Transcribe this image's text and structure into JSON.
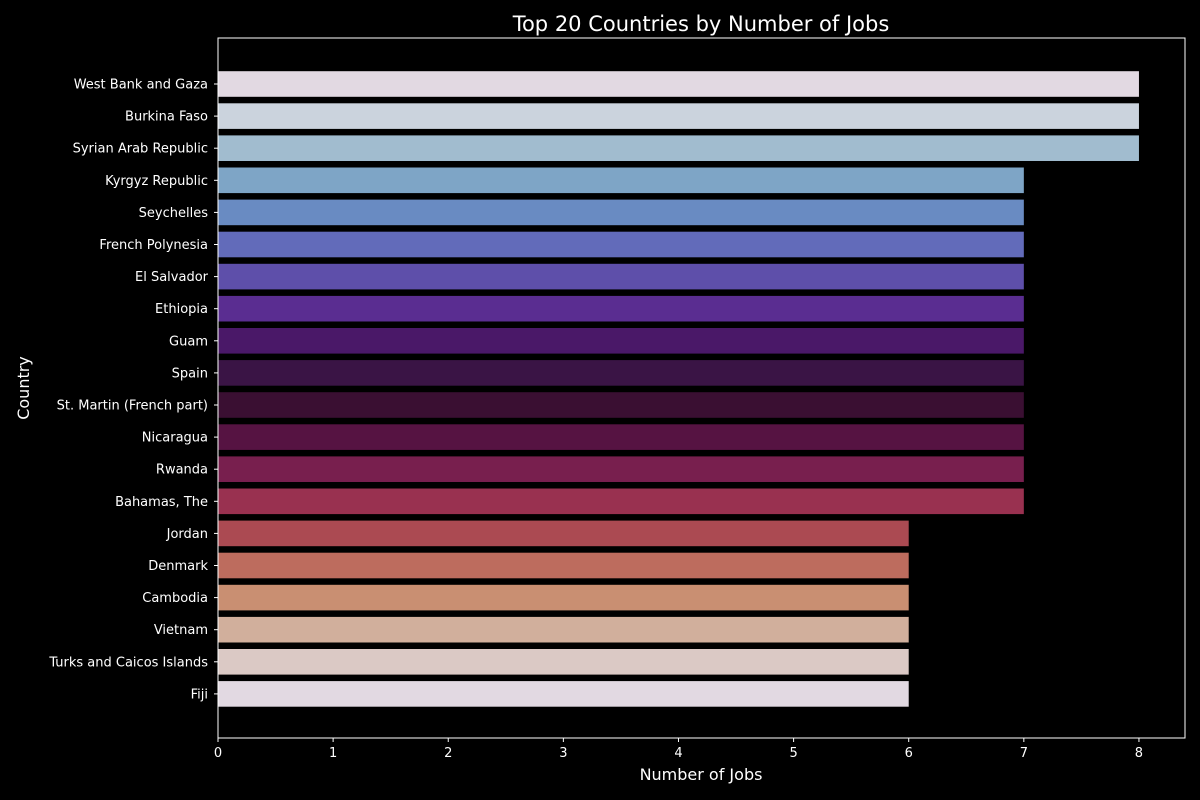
{
  "chart_data": {
    "type": "bar",
    "orientation": "horizontal",
    "title": "Top 20 Countries by Number of Jobs",
    "xlabel": "Number of Jobs",
    "ylabel": "Country",
    "xlim": [
      0,
      8.4
    ],
    "xticks": [
      0,
      1,
      2,
      3,
      4,
      5,
      6,
      7,
      8
    ],
    "grid": false,
    "background": "#000000",
    "categories": [
      "West Bank and Gaza",
      "Burkina Faso",
      "Syrian Arab Republic",
      "Kyrgyz Republic",
      "Seychelles",
      "French Polynesia",
      "El Salvador",
      "Ethiopia",
      "Guam",
      "Spain",
      "St. Martin (French part)",
      "Nicaragua",
      "Rwanda",
      "Bahamas, The",
      "Jordan",
      "Denmark",
      "Cambodia",
      "Vietnam",
      "Turks and Caicos Islands",
      "Fiji"
    ],
    "values": [
      8,
      8,
      8,
      7,
      7,
      7,
      7,
      7,
      7,
      7,
      7,
      7,
      7,
      7,
      6,
      6,
      6,
      6,
      6,
      6
    ],
    "colors": [
      "#e2d9e2",
      "#cbd3dd",
      "#a1bccf",
      "#7ea5c6",
      "#698bc2",
      "#626bba",
      "#5e4faa",
      "#5a2d91",
      "#4a1868",
      "#3a1445",
      "#3a0f32",
      "#561342",
      "#781f4e",
      "#993150",
      "#ab4a52",
      "#bd6c5e",
      "#c98f72",
      "#d1af9c",
      "#dbc9c5",
      "#e2d9e2"
    ]
  }
}
